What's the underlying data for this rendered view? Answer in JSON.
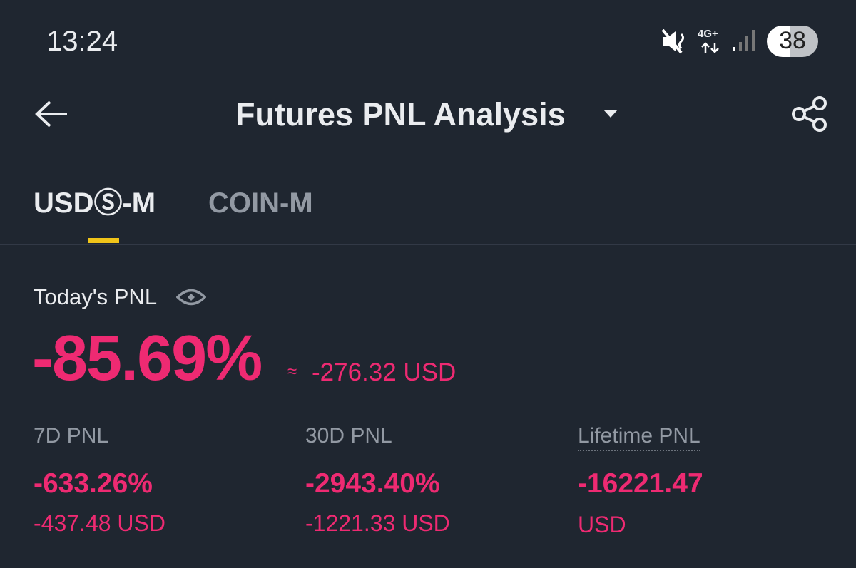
{
  "status_bar": {
    "time": "13:24",
    "network": "4G+",
    "battery": "38"
  },
  "header": {
    "title": "Futures PNL Analysis"
  },
  "tabs": [
    "USDⓈ-M",
    "COIN-M"
  ],
  "today": {
    "label": "Today's PNL",
    "percent": "-85.69%",
    "approx": "≈",
    "amount": "-276.32 USD"
  },
  "stats": [
    {
      "label": "7D PNL",
      "percent": "-633.26%",
      "amount": "-437.48 USD"
    },
    {
      "label": "30D PNL",
      "percent": "-2943.40%",
      "amount": "-1221.33 USD"
    },
    {
      "label": "Lifetime PNL",
      "percent": "-16221.47",
      "amount": "USD"
    }
  ]
}
